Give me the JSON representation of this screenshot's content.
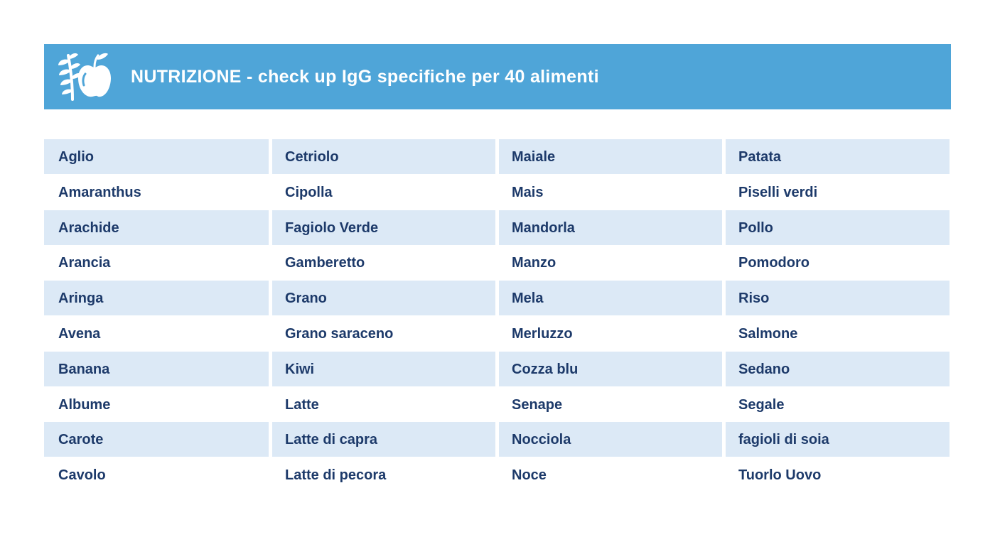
{
  "header": {
    "title": "NUTRIZIONE - check up IgG specifiche per 40 alimenti",
    "icon": "wheat-apple-icon",
    "background_color": "#4fa5d8",
    "text_color": "#ffffff"
  },
  "table": {
    "shaded_row_color": "#dce9f6",
    "text_color": "#1d3a6a",
    "rows": [
      [
        "Aglio",
        "Cetriolo",
        "Maiale",
        "Patata"
      ],
      [
        "Amaranthus",
        "Cipolla",
        "Mais",
        "Piselli verdi"
      ],
      [
        "Arachide",
        "Fagiolo Verde",
        "Mandorla",
        "Pollo"
      ],
      [
        "Arancia",
        "Gamberetto",
        "Manzo",
        "Pomodoro"
      ],
      [
        "Aringa",
        "Grano",
        "Mela",
        "Riso"
      ],
      [
        "Avena",
        "Grano saraceno",
        "Merluzzo",
        "Salmone"
      ],
      [
        "Banana",
        "Kiwi",
        "Cozza blu",
        "Sedano"
      ],
      [
        "Albume",
        "Latte",
        "Senape",
        "Segale"
      ],
      [
        "Carote",
        "Latte di capra",
        "Nocciola",
        "fagioli di soia"
      ],
      [
        "Cavolo",
        "Latte di pecora",
        "Noce",
        "Tuorlo Uovo"
      ]
    ]
  }
}
